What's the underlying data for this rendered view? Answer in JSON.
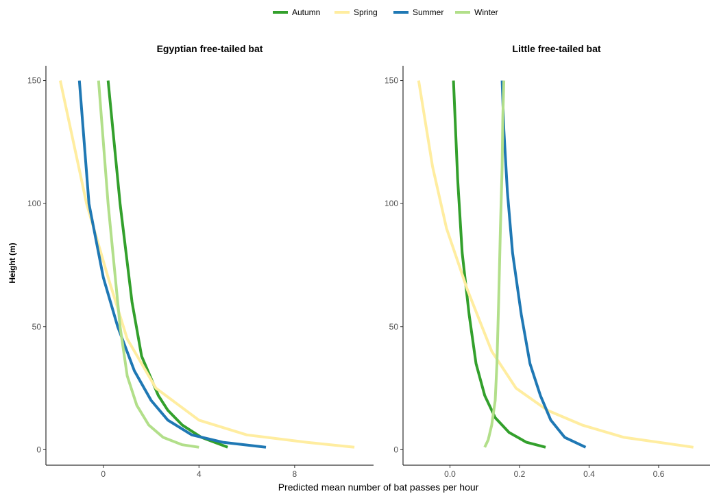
{
  "chart_data": {
    "type": "line",
    "xlabel": "Predicted mean number of bat passes per hour",
    "ylabel": "Height (m)",
    "legend": {
      "position": "top",
      "items": [
        {
          "name": "Autumn",
          "color": "#33a02c"
        },
        {
          "name": "Spring",
          "color": "#ffeda0"
        },
        {
          "name": "Summer",
          "color": "#1f78b4"
        },
        {
          "name": "Winter",
          "color": "#b2df8a"
        }
      ]
    },
    "panels": [
      {
        "title": "Egyptian free-tailed bat",
        "xlim": [
          -2.4,
          11.3
        ],
        "ylim": [
          -6.3,
          156
        ],
        "xticks": [
          0,
          4,
          8
        ],
        "yticks": [
          0,
          50,
          100,
          150
        ],
        "series": [
          {
            "name": "Autumn",
            "x": [
              5.2,
              4.1,
              3.3,
              2.7,
              2.3,
              1.6,
              1.2,
              0.7,
              0.2
            ],
            "y": [
              1,
              5,
              10,
              16,
              22,
              38,
              60,
              100,
              150
            ]
          },
          {
            "name": "Spring",
            "x": [
              10.5,
              8.5,
              6.0,
              4.0,
              2.2,
              1.0,
              0.2,
              -0.7,
              -1.8
            ],
            "y": [
              1,
              3,
              6,
              12,
              25,
              45,
              70,
              100,
              150
            ]
          },
          {
            "name": "Summer",
            "x": [
              6.8,
              5.0,
              3.7,
              2.7,
              2.0,
              1.3,
              0.6,
              0.0,
              -0.6,
              -1.0
            ],
            "y": [
              1,
              3,
              6,
              12,
              20,
              32,
              50,
              70,
              100,
              150
            ]
          },
          {
            "name": "Winter",
            "x": [
              4.0,
              3.3,
              2.5,
              1.9,
              1.4,
              1.0,
              0.7,
              0.5,
              0.2,
              -0.2
            ],
            "y": [
              1,
              2,
              5,
              10,
              18,
              30,
              50,
              70,
              100,
              150
            ]
          }
        ]
      },
      {
        "title": "Little free-tailed bat",
        "xlim": [
          -0.135,
          0.748
        ],
        "ylim": [
          -6.3,
          156
        ],
        "xticks": [
          0.0,
          0.2,
          0.4,
          0.6
        ],
        "yticks": [
          0,
          50,
          100,
          150
        ],
        "series": [
          {
            "name": "Autumn",
            "x": [
              0.275,
              0.22,
              0.17,
              0.13,
              0.1,
              0.075,
              0.055,
              0.035,
              0.022,
              0.01
            ],
            "y": [
              1,
              3,
              7,
              13,
              22,
              35,
              55,
              80,
              110,
              150
            ]
          },
          {
            "name": "Spring",
            "x": [
              0.7,
              0.5,
              0.38,
              0.28,
              0.19,
              0.12,
              0.05,
              -0.01,
              -0.05,
              -0.09
            ],
            "y": [
              1,
              5,
              10,
              16,
              25,
              40,
              65,
              90,
              115,
              150
            ]
          },
          {
            "name": "Summer",
            "x": [
              0.39,
              0.33,
              0.29,
              0.26,
              0.23,
              0.205,
              0.18,
              0.165,
              0.155,
              0.15
            ],
            "y": [
              1,
              5,
              12,
              22,
              35,
              55,
              80,
              105,
              130,
              150
            ]
          },
          {
            "name": "Winter",
            "x": [
              0.1,
              0.11,
              0.12,
              0.13,
              0.135,
              0.14,
              0.145,
              0.15,
              0.152,
              0.155
            ],
            "y": [
              1,
              4,
              10,
              20,
              35,
              60,
              90,
              115,
              135,
              150
            ]
          }
        ]
      }
    ]
  }
}
